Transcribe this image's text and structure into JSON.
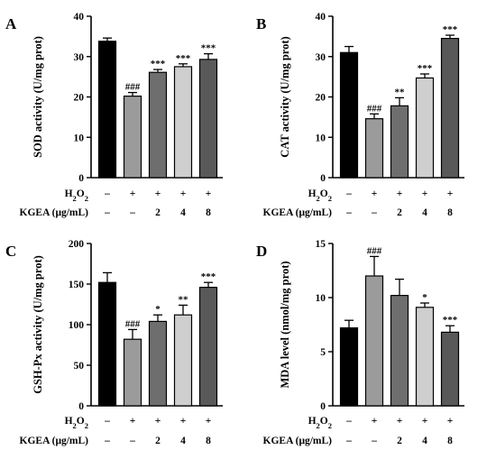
{
  "chart_data": [
    {
      "type": "bar",
      "panel": "A",
      "ylabel": "SOD activity (U/mg prot)",
      "ylim": [
        0,
        40
      ],
      "yticks": [
        0,
        10,
        20,
        30,
        40
      ],
      "values": [
        33.8,
        20.2,
        26.1,
        27.5,
        29.3
      ],
      "errors": [
        0.8,
        0.9,
        0.7,
        0.7,
        1.4
      ],
      "colors": [
        "#000000",
        "#9b9b9b",
        "#6e6e6e",
        "#cfcfcf",
        "#595959"
      ],
      "significance": [
        "",
        "###",
        "***",
        "***",
        "***"
      ]
    },
    {
      "type": "bar",
      "panel": "B",
      "ylabel": "CAT activity (U/mg prot)",
      "ylim": [
        0,
        40
      ],
      "yticks": [
        0,
        10,
        20,
        30,
        40
      ],
      "values": [
        31.0,
        14.6,
        17.8,
        24.7,
        34.5
      ],
      "errors": [
        1.5,
        1.2,
        2.0,
        1.0,
        0.8
      ],
      "colors": [
        "#000000",
        "#9b9b9b",
        "#6e6e6e",
        "#cfcfcf",
        "#595959"
      ],
      "significance": [
        "",
        "###",
        "**",
        "***",
        "***"
      ]
    },
    {
      "type": "bar",
      "panel": "C",
      "ylabel": "GSH-Px activity (U/mg prot)",
      "ylim": [
        0,
        200
      ],
      "yticks": [
        0,
        50,
        100,
        150,
        200
      ],
      "values": [
        152,
        82,
        104,
        112,
        146
      ],
      "errors": [
        12,
        12,
        8,
        12,
        6
      ],
      "colors": [
        "#000000",
        "#9b9b9b",
        "#6e6e6e",
        "#cfcfcf",
        "#595959"
      ],
      "significance": [
        "",
        "###",
        "*",
        "**",
        "***"
      ]
    },
    {
      "type": "bar",
      "panel": "D",
      "ylabel": "MDA level (nmol/mg prot)",
      "ylim": [
        0,
        15
      ],
      "yticks": [
        0,
        5,
        10,
        15
      ],
      "values": [
        7.2,
        12.0,
        10.2,
        9.1,
        6.8
      ],
      "errors": [
        0.7,
        1.8,
        1.5,
        0.4,
        0.6
      ],
      "colors": [
        "#000000",
        "#9b9b9b",
        "#6e6e6e",
        "#cfcfcf",
        "#595959"
      ],
      "significance": [
        "",
        "###",
        "",
        "*",
        "***"
      ]
    }
  ],
  "treatments": {
    "h2o2_label": "H",
    "h2o2_sub": "2",
    "h2o2_label_end": "O",
    "h2o2_sub_end": "2",
    "h2o2_values": [
      "–",
      "+",
      "+",
      "+",
      "+"
    ],
    "kgea_label": "KGEA (μg/mL)",
    "kgea_values": [
      "–",
      "–",
      "2",
      "4",
      "8"
    ]
  }
}
